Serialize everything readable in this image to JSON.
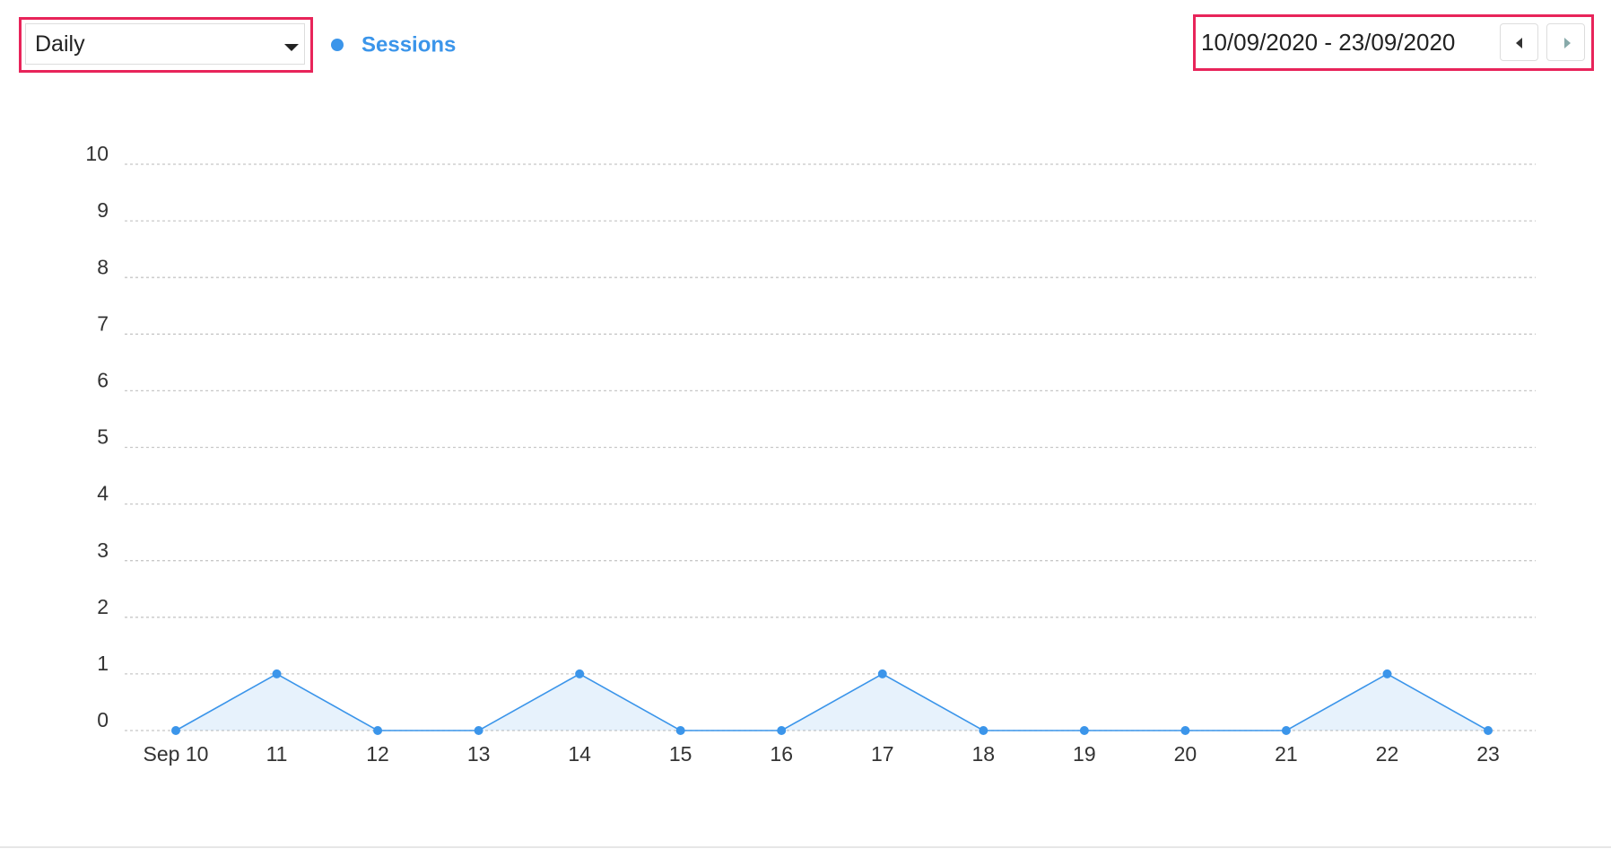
{
  "controls": {
    "interval": "Daily",
    "date_range": "10/09/2020 - 23/09/2020"
  },
  "chart_data": {
    "type": "line",
    "categories": [
      "Sep 10",
      "11",
      "12",
      "13",
      "14",
      "15",
      "16",
      "17",
      "18",
      "19",
      "20",
      "21",
      "22",
      "23"
    ],
    "series": [
      {
        "name": "Sessions",
        "color": "#3b95ea",
        "values": [
          0,
          1,
          0,
          0,
          1,
          0,
          0,
          1,
          0,
          0,
          0,
          0,
          1,
          0
        ]
      }
    ],
    "ylim": [
      0,
      10
    ],
    "yticks": [
      0,
      1,
      2,
      3,
      4,
      5,
      6,
      7,
      8,
      9,
      10
    ],
    "grid": true,
    "area": true
  }
}
